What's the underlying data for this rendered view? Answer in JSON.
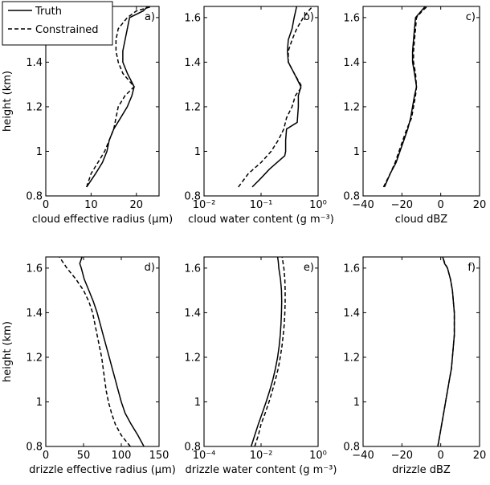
{
  "chart_data": [
    {
      "id": "a",
      "type": "line",
      "panel_label": "a)",
      "xlabel": "cloud effective radius (µm)",
      "ylabel": "height (km)",
      "xscale": "linear",
      "xlim": [
        0,
        25
      ],
      "ylim": [
        0.8,
        1.65
      ],
      "xticks": [
        0,
        10,
        20
      ],
      "xtick_labels": [
        "0",
        "10",
        "20"
      ],
      "yticks": [
        0.8,
        1.0,
        1.2,
        1.4,
        1.6
      ],
      "ytick_labels": [
        "0.8",
        "1",
        "1.2",
        "1.4",
        "1.6"
      ],
      "legend": {
        "position": "top-left",
        "entries": [
          "Truth",
          "Constrained"
        ]
      },
      "series": [
        {
          "name": "Truth",
          "style": "solid",
          "y": [
            0.84,
            0.9,
            0.95,
            1.0,
            1.05,
            1.1,
            1.15,
            1.2,
            1.25,
            1.29,
            1.35,
            1.4,
            1.45,
            1.5,
            1.55,
            1.6,
            1.63,
            1.65
          ],
          "x": [
            9,
            11,
            12.5,
            13.5,
            14,
            15,
            16.5,
            18,
            19,
            19.5,
            18,
            17,
            17,
            17.5,
            18,
            18.5,
            21.5,
            22.5
          ]
        },
        {
          "name": "Constrained",
          "style": "dashed",
          "y": [
            0.84,
            0.9,
            0.95,
            1.0,
            1.05,
            1.1,
            1.15,
            1.2,
            1.25,
            1.29,
            1.35,
            1.4,
            1.45,
            1.5,
            1.55,
            1.6,
            1.63,
            1.65
          ],
          "x": [
            9,
            10,
            11.5,
            13,
            14,
            15,
            15.5,
            16,
            17.5,
            19.5,
            17,
            16,
            15.5,
            15.5,
            16,
            18,
            20,
            23.5
          ]
        }
      ]
    },
    {
      "id": "b",
      "type": "line",
      "panel_label": "b)",
      "xlabel": "cloud water content (g m⁻³)",
      "ylabel": "",
      "xscale": "log",
      "xlim": [
        0.01,
        1
      ],
      "ylim": [
        0.8,
        1.65
      ],
      "xticks": [
        0.01,
        0.1,
        1
      ],
      "xtick_labels": [
        "10⁻²",
        "10⁻¹",
        "10⁰"
      ],
      "yticks": [
        0.8,
        1.0,
        1.2,
        1.4,
        1.6
      ],
      "ytick_labels": [
        "0.8",
        "1",
        "1.2",
        "1.4",
        "1.6"
      ],
      "series": [
        {
          "name": "Truth",
          "style": "solid",
          "y": [
            0.84,
            0.88,
            0.92,
            0.95,
            0.98,
            1.0,
            1.05,
            1.1,
            1.13,
            1.2,
            1.25,
            1.29,
            1.35,
            1.4,
            1.45,
            1.5,
            1.55,
            1.6,
            1.65
          ],
          "x": [
            0.07,
            0.1,
            0.14,
            0.19,
            0.26,
            0.27,
            0.27,
            0.28,
            0.43,
            0.45,
            0.45,
            0.5,
            0.38,
            0.3,
            0.29,
            0.3,
            0.35,
            0.38,
            0.42
          ]
        },
        {
          "name": "Constrained",
          "style": "dashed",
          "y": [
            0.84,
            0.9,
            0.95,
            1.0,
            1.05,
            1.1,
            1.15,
            1.2,
            1.25,
            1.29,
            1.35,
            1.4,
            1.45,
            1.5,
            1.55,
            1.6,
            1.63,
            1.65
          ],
          "x": [
            0.04,
            0.06,
            0.1,
            0.15,
            0.2,
            0.25,
            0.28,
            0.35,
            0.4,
            0.52,
            0.38,
            0.3,
            0.3,
            0.35,
            0.42,
            0.55,
            0.68,
            0.8
          ]
        }
      ]
    },
    {
      "id": "c",
      "type": "line",
      "panel_label": "c)",
      "xlabel": "cloud dBZ",
      "ylabel": "",
      "xscale": "linear",
      "xlim": [
        -40,
        20
      ],
      "ylim": [
        0.8,
        1.65
      ],
      "xticks": [
        -40,
        -20,
        0,
        20
      ],
      "xtick_labels": [
        "−40",
        "−20",
        "0",
        "20"
      ],
      "yticks": [
        0.8,
        1.0,
        1.2,
        1.4,
        1.6
      ],
      "ytick_labels": [
        "0.8",
        "1",
        "1.2",
        "1.4",
        "1.6"
      ],
      "series": [
        {
          "name": "Truth",
          "style": "solid",
          "y": [
            0.84,
            0.9,
            0.95,
            1.0,
            1.05,
            1.1,
            1.15,
            1.2,
            1.25,
            1.29,
            1.35,
            1.4,
            1.45,
            1.5,
            1.55,
            1.6,
            1.63,
            1.65
          ],
          "x": [
            -29,
            -26,
            -23,
            -21,
            -19,
            -17,
            -15.5,
            -14.5,
            -13.5,
            -12.5,
            -13.5,
            -14.5,
            -14.5,
            -14,
            -13.5,
            -13,
            -10,
            -8
          ]
        },
        {
          "name": "Constrained",
          "style": "dashed",
          "y": [
            0.84,
            0.9,
            0.95,
            1.0,
            1.05,
            1.1,
            1.15,
            1.2,
            1.25,
            1.29,
            1.35,
            1.4,
            1.45,
            1.5,
            1.55,
            1.6,
            1.63,
            1.65
          ],
          "x": [
            -29.5,
            -26,
            -23.5,
            -21.5,
            -19.5,
            -17.5,
            -15,
            -14,
            -13,
            -12.5,
            -13,
            -14,
            -14,
            -13.5,
            -13,
            -12.5,
            -9.5,
            -7
          ]
        }
      ]
    },
    {
      "id": "d",
      "type": "line",
      "panel_label": "d)",
      "xlabel": "drizzle effective radius (µm)",
      "ylabel": "height (km)",
      "xscale": "linear",
      "xlim": [
        0,
        150
      ],
      "ylim": [
        0.8,
        1.65
      ],
      "xticks": [
        0,
        50,
        100,
        150
      ],
      "xtick_labels": [
        "0",
        "50",
        "100",
        "150"
      ],
      "yticks": [
        0.8,
        1.0,
        1.2,
        1.4,
        1.6
      ],
      "ytick_labels": [
        "0.8",
        "1",
        "1.2",
        "1.4",
        "1.6"
      ],
      "series": [
        {
          "name": "Truth",
          "style": "solid",
          "y": [
            0.8,
            0.85,
            0.9,
            0.95,
            1.0,
            1.05,
            1.1,
            1.15,
            1.2,
            1.25,
            1.3,
            1.35,
            1.4,
            1.45,
            1.5,
            1.55,
            1.6,
            1.62,
            1.65
          ],
          "x": [
            130,
            122,
            113,
            105,
            100,
            96,
            92,
            88,
            84,
            80,
            76,
            72,
            68,
            63,
            57,
            51,
            47,
            45,
            48
          ]
        },
        {
          "name": "Constrained",
          "style": "dashed",
          "y": [
            0.8,
            0.85,
            0.9,
            0.95,
            1.0,
            1.05,
            1.1,
            1.15,
            1.2,
            1.25,
            1.3,
            1.35,
            1.4,
            1.45,
            1.5,
            1.55,
            1.6,
            1.65
          ],
          "x": [
            112,
            100,
            92,
            87,
            83,
            80,
            78,
            76,
            74,
            71,
            68,
            65,
            62,
            57,
            50,
            40,
            28,
            18
          ]
        }
      ]
    },
    {
      "id": "e",
      "type": "line",
      "panel_label": "e)",
      "xlabel": "drizzle water content (g m⁻³)",
      "ylabel": "",
      "xscale": "log",
      "xlim": [
        0.0001,
        1
      ],
      "ylim": [
        0.8,
        1.65
      ],
      "xticks": [
        0.0001,
        0.01,
        1
      ],
      "xtick_labels": [
        "10⁻⁴",
        "10⁻²",
        "10⁰"
      ],
      "yticks": [
        0.8,
        1.0,
        1.2,
        1.4,
        1.6
      ],
      "ytick_labels": [
        "0.8",
        "1",
        "1.2",
        "1.4",
        "1.6"
      ],
      "series": [
        {
          "name": "Truth",
          "style": "solid",
          "y": [
            0.8,
            0.85,
            0.9,
            0.95,
            1.0,
            1.05,
            1.1,
            1.15,
            1.2,
            1.25,
            1.3,
            1.35,
            1.4,
            1.45,
            1.5,
            1.55,
            1.6,
            1.63,
            1.65
          ],
          "x": [
            0.0045,
            0.006,
            0.008,
            0.011,
            0.015,
            0.02,
            0.026,
            0.032,
            0.038,
            0.043,
            0.047,
            0.05,
            0.052,
            0.053,
            0.052,
            0.048,
            0.042,
            0.04,
            0.038
          ]
        },
        {
          "name": "Constrained",
          "style": "dashed",
          "y": [
            0.8,
            0.85,
            0.9,
            0.95,
            1.0,
            1.05,
            1.1,
            1.15,
            1.2,
            1.25,
            1.3,
            1.35,
            1.4,
            1.45,
            1.5,
            1.55,
            1.6,
            1.63,
            1.65
          ],
          "x": [
            0.006,
            0.008,
            0.01,
            0.014,
            0.019,
            0.025,
            0.032,
            0.04,
            0.047,
            0.054,
            0.06,
            0.065,
            0.068,
            0.07,
            0.07,
            0.068,
            0.063,
            0.058,
            0.055
          ]
        }
      ]
    },
    {
      "id": "f",
      "type": "line",
      "panel_label": "f)",
      "xlabel": "drizzle dBZ",
      "ylabel": "",
      "xscale": "linear",
      "xlim": [
        -40,
        20
      ],
      "ylim": [
        0.8,
        1.65
      ],
      "xticks": [
        -40,
        -20,
        0,
        20
      ],
      "xtick_labels": [
        "−40",
        "−20",
        "0",
        "20"
      ],
      "yticks": [
        0.8,
        1.0,
        1.2,
        1.4,
        1.6
      ],
      "ytick_labels": [
        "0.8",
        "1",
        "1.2",
        "1.4",
        "1.6"
      ],
      "series": [
        {
          "name": "Truth",
          "style": "solid",
          "y": [
            0.8,
            0.85,
            0.9,
            0.95,
            1.0,
            1.05,
            1.1,
            1.15,
            1.2,
            1.25,
            1.3,
            1.35,
            1.4,
            1.45,
            1.5,
            1.55,
            1.6,
            1.62,
            1.65
          ],
          "x": [
            -1.5,
            -0.5,
            0.5,
            1.5,
            2.5,
            3.5,
            4.5,
            5.5,
            6,
            6.5,
            7,
            7,
            7,
            6.5,
            6,
            5,
            3.5,
            2,
            1
          ]
        },
        {
          "name": "Constrained",
          "style": "dashed",
          "y": [
            0.8,
            0.85,
            0.9,
            0.95,
            1.0,
            1.05,
            1.1,
            1.15,
            1.2,
            1.25,
            1.3,
            1.35,
            1.4,
            1.45,
            1.5,
            1.55,
            1.6,
            1.62,
            1.65
          ],
          "x": [
            -1.5,
            -0.5,
            0.5,
            1.5,
            2.5,
            3.5,
            4.5,
            5.5,
            6,
            6.5,
            7,
            7,
            7,
            6.5,
            6,
            5,
            3.5,
            2.2,
            1
          ]
        }
      ]
    }
  ]
}
